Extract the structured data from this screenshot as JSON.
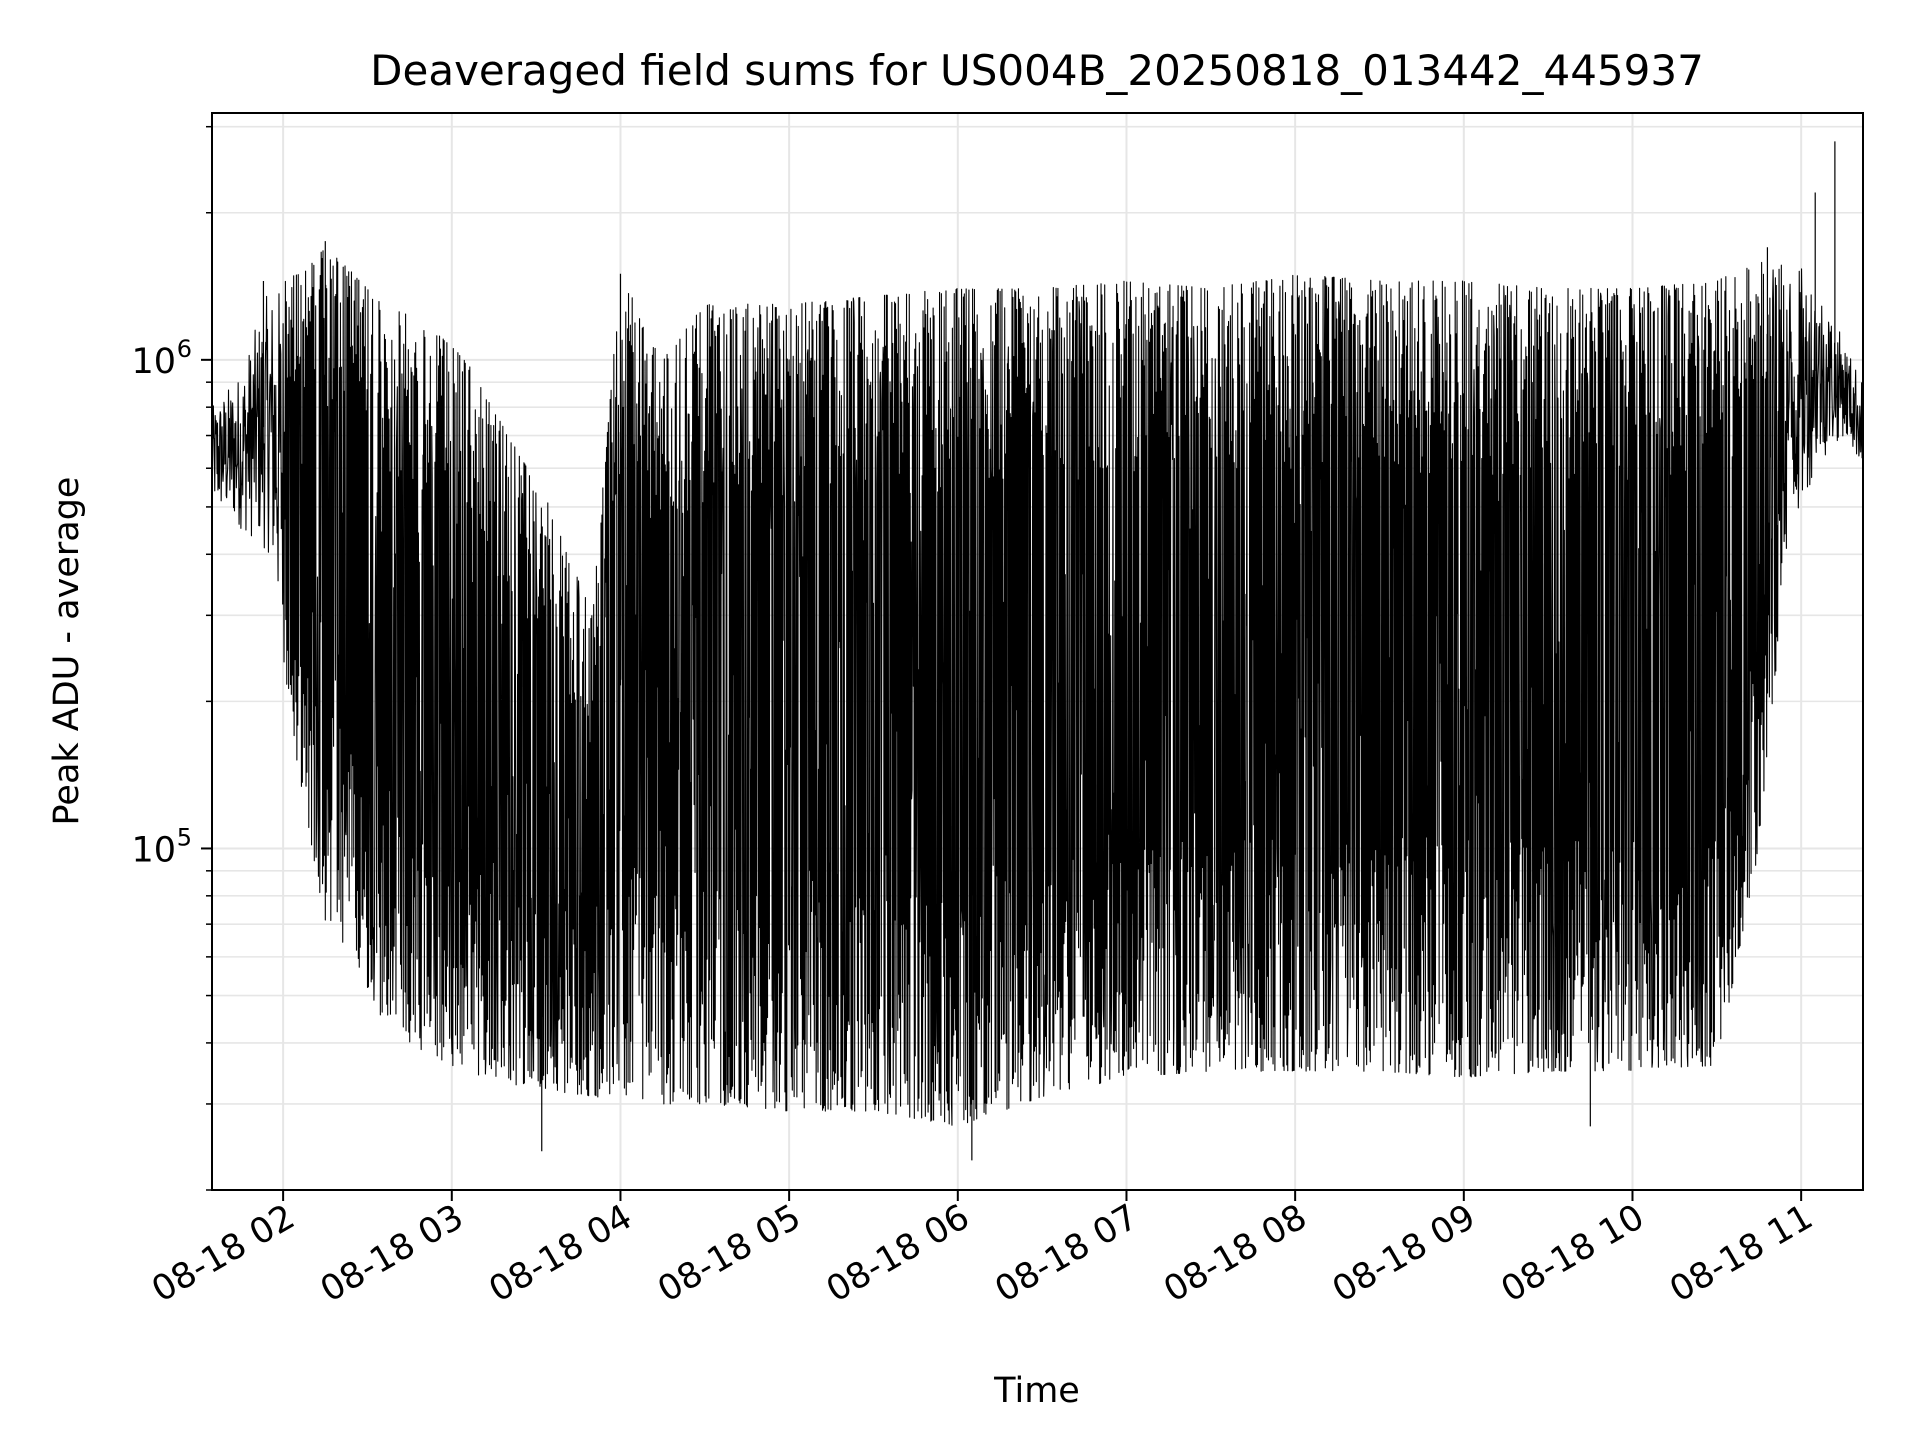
{
  "chart_data": {
    "type": "line",
    "title": "Deaveraged field sums for US004B_20250818_013442_445937",
    "xlabel": "Time",
    "ylabel": "Peak ADU - average",
    "yscale": "log",
    "ylim": [
      20000,
      3200000
    ],
    "x_range": [
      "2025-08-18 01:34:42",
      "2025-08-18 11:22:00"
    ],
    "x_ticks": [
      {
        "value": "2025-08-18 02:00",
        "label": "08-18 02"
      },
      {
        "value": "2025-08-18 03:00",
        "label": "08-18 03"
      },
      {
        "value": "2025-08-18 04:00",
        "label": "08-18 04"
      },
      {
        "value": "2025-08-18 05:00",
        "label": "08-18 05"
      },
      {
        "value": "2025-08-18 06:00",
        "label": "08-18 06"
      },
      {
        "value": "2025-08-18 07:00",
        "label": "08-18 07"
      },
      {
        "value": "2025-08-18 08:00",
        "label": "08-18 08"
      },
      {
        "value": "2025-08-18 09:00",
        "label": "08-18 09"
      },
      {
        "value": "2025-08-18 10:00",
        "label": "08-18 10"
      },
      {
        "value": "2025-08-18 11:00",
        "label": "08-18 11"
      }
    ],
    "y_ticks": [
      {
        "value": 100000,
        "base": "10",
        "exp": "5"
      },
      {
        "value": 1000000,
        "base": "10",
        "exp": "6"
      }
    ],
    "grid": true,
    "series": [
      {
        "color": "#000000",
        "envelope": [
          {
            "time": "2025-08-18 01:34:42",
            "low": 500000,
            "high": 800000
          },
          {
            "time": "2025-08-18 01:45",
            "low": 450000,
            "high": 950000
          },
          {
            "time": "2025-08-18 01:55",
            "low": 400000,
            "high": 1400000
          },
          {
            "time": "2025-08-18 02:05",
            "low": 150000,
            "high": 1500000
          },
          {
            "time": "2025-08-18 02:15",
            "low": 70000,
            "high": 1700000
          },
          {
            "time": "2025-08-18 02:25",
            "low": 60000,
            "high": 1500000
          },
          {
            "time": "2025-08-18 02:35",
            "low": 45000,
            "high": 1300000
          },
          {
            "time": "2025-08-18 02:50",
            "low": 38000,
            "high": 1200000
          },
          {
            "time": "2025-08-18 03:05",
            "low": 35000,
            "high": 1000000
          },
          {
            "time": "2025-08-18 03:20",
            "low": 33000,
            "high": 700000
          },
          {
            "time": "2025-08-18 03:35",
            "low": 32000,
            "high": 500000
          },
          {
            "time": "2025-08-18 03:50",
            "low": 31000,
            "high": 300000
          },
          {
            "time": "2025-08-18 04:00",
            "low": 31000,
            "high": 1500000
          },
          {
            "time": "2025-08-18 04:15",
            "low": 30000,
            "high": 1000000
          },
          {
            "time": "2025-08-18 04:30",
            "low": 30000,
            "high": 1300000
          },
          {
            "time": "2025-08-18 05:00",
            "low": 29000,
            "high": 1300000
          },
          {
            "time": "2025-08-18 05:30",
            "low": 29000,
            "high": 1350000
          },
          {
            "time": "2025-08-18 06:00",
            "low": 27000,
            "high": 1400000
          },
          {
            "time": "2025-08-18 06:30",
            "low": 31000,
            "high": 1400000
          },
          {
            "time": "2025-08-18 07:00",
            "low": 34000,
            "high": 1450000
          },
          {
            "time": "2025-08-18 07:30",
            "low": 35000,
            "high": 1400000
          },
          {
            "time": "2025-08-18 08:00",
            "low": 35000,
            "high": 1500000
          },
          {
            "time": "2025-08-18 08:30",
            "low": 35000,
            "high": 1450000
          },
          {
            "time": "2025-08-18 09:00",
            "low": 34000,
            "high": 1450000
          },
          {
            "time": "2025-08-18 09:30",
            "low": 35000,
            "high": 1400000
          },
          {
            "time": "2025-08-18 10:00",
            "low": 35000,
            "high": 1400000
          },
          {
            "time": "2025-08-18 10:30",
            "low": 36000,
            "high": 1450000
          },
          {
            "time": "2025-08-18 10:45",
            "low": 100000,
            "high": 1600000
          },
          {
            "time": "2025-08-18 10:55",
            "low": 400000,
            "high": 1600000
          },
          {
            "time": "2025-08-18 11:05",
            "low": 600000,
            "high": 1500000
          },
          {
            "time": "2025-08-18 11:15",
            "low": 700000,
            "high": 1100000
          },
          {
            "time": "2025-08-18 11:22:00",
            "low": 600000,
            "high": 900000
          }
        ],
        "spikes": [
          {
            "time": "2025-08-18 01:53",
            "value": 1450000
          },
          {
            "time": "2025-08-18 02:15",
            "value": 1750000
          },
          {
            "time": "2025-08-18 04:00",
            "value": 1500000
          },
          {
            "time": "2025-08-18 10:48",
            "value": 1700000
          },
          {
            "time": "2025-08-18 11:05",
            "value": 2200000
          },
          {
            "time": "2025-08-18 11:12",
            "value": 2800000
          },
          {
            "time": "2025-08-18 03:32",
            "value": 24000
          },
          {
            "time": "2025-08-18 06:05",
            "value": 23000
          },
          {
            "time": "2025-08-18 09:45",
            "value": 27000
          }
        ]
      }
    ]
  }
}
